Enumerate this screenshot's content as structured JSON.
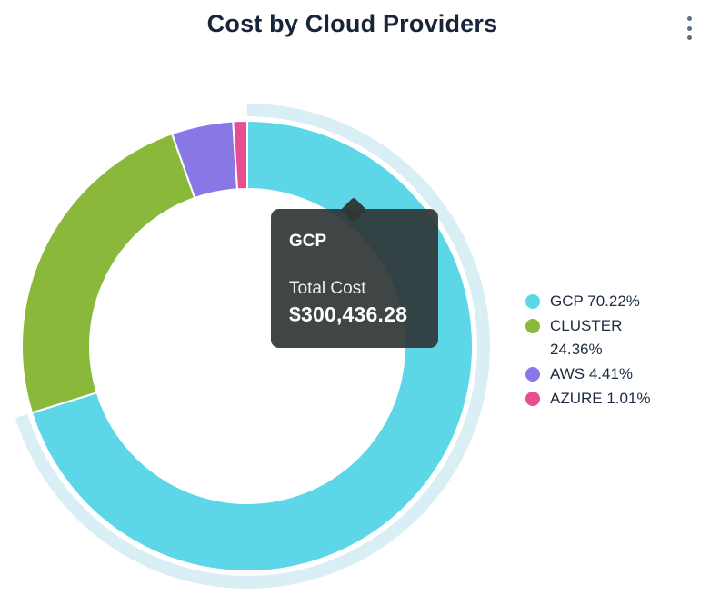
{
  "header": {
    "title": "Cost by Cloud Providers",
    "title_color": "#182539",
    "menu_icon": "kebab-menu",
    "menu_dot_color": "#5f6d7e"
  },
  "chart_data": {
    "type": "pie",
    "donut": true,
    "title": "Cost by Cloud Providers",
    "legend_position": "right",
    "start_angle_deg": 0,
    "hovered_slice": "GCP",
    "hover_ring_color": "#daeef5",
    "separator_color": "#ffffff",
    "slices": [
      {
        "name": "GCP",
        "percent": 70.22,
        "color": "#5dd6e8",
        "legend_label": "GCP 70.22%"
      },
      {
        "name": "CLUSTER",
        "percent": 24.36,
        "color": "#8ab83a",
        "legend_label": "CLUSTER 24.36%"
      },
      {
        "name": "AWS",
        "percent": 4.41,
        "color": "#8878e6",
        "legend_label": "AWS 4.41%"
      },
      {
        "name": "AZURE",
        "percent": 1.01,
        "color": "#e64d92",
        "legend_label": "AZURE 1.01%"
      }
    ],
    "tooltip": {
      "series": "GCP",
      "label": "Total Cost",
      "value": "$300,436.28",
      "background": "rgba(48,53,53,0.92)"
    },
    "legend_text_color": "#1d2b42"
  }
}
